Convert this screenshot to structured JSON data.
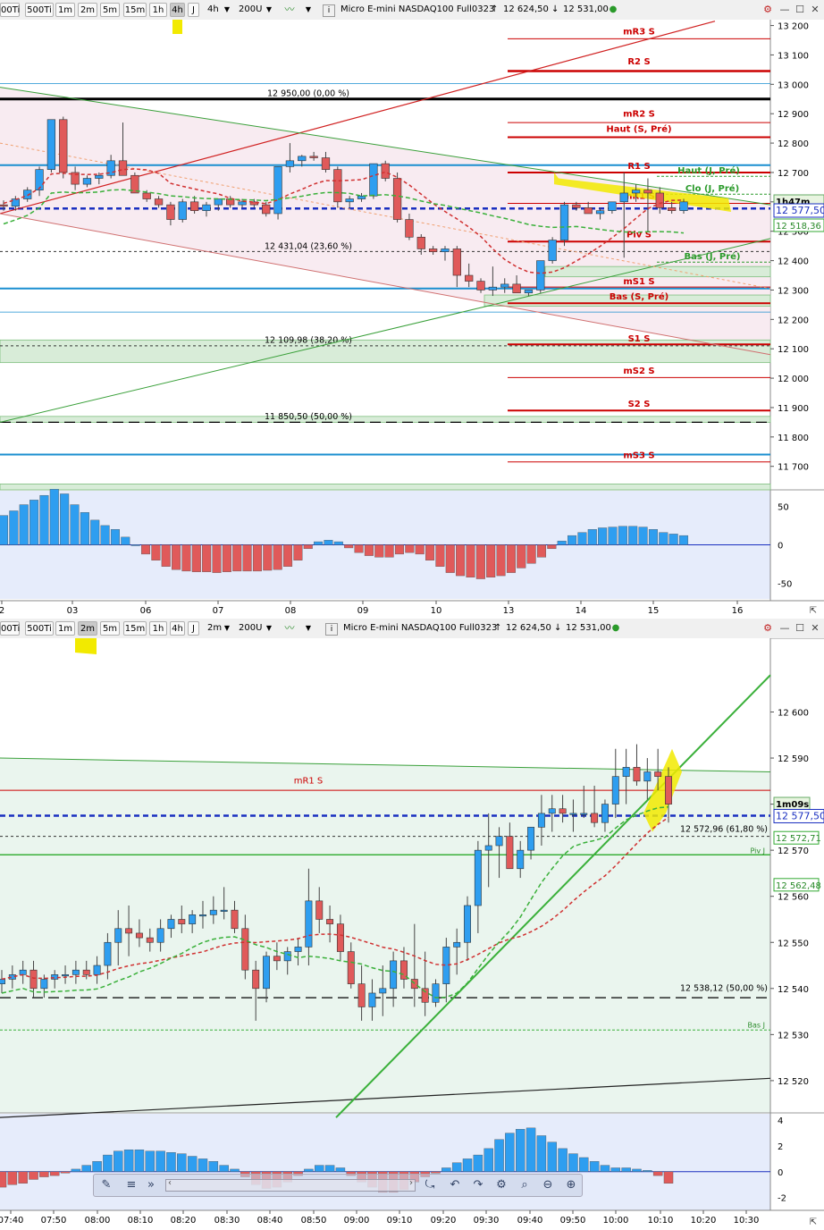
{
  "toolbar_top": {
    "buttons": [
      "00Ti",
      "500Ti",
      "1m",
      "2m",
      "5m",
      "15m",
      "1h",
      "4h",
      "J"
    ],
    "active": "4h",
    "period": "4h",
    "bars": "200U",
    "title": "Micro E-mini NASDAQ100 Full0323",
    "high": "12 624,50",
    "low": "12 531,00"
  },
  "toolbar_bottom": {
    "buttons": [
      "00Ti",
      "500Ti",
      "1m",
      "2m",
      "5m",
      "15m",
      "1h",
      "4h",
      "J"
    ],
    "active": "2m",
    "period": "2m",
    "bars": "200U",
    "title": "Micro E-mini NASDAQ100 Full0323",
    "high": "12 624,50",
    "low": "12 531,00"
  },
  "colors": {
    "up": "#2e9ef0",
    "down": "#e05a5a",
    "pivot_red": "#cc0000",
    "green": "#2a9a2a",
    "blue_dash": "#1a2fc0",
    "highlight": "#f2ea00"
  },
  "chart_data": [
    {
      "type": "candlestick",
      "name": "4h",
      "ylim": [
        11620,
        13220
      ],
      "y_ticks": [
        "13 200",
        "13 100",
        "13 000",
        "12 900",
        "12 800",
        "12 700",
        "12 600",
        "12 500",
        "12 400",
        "12 300",
        "12 200",
        "12 100",
        "12 000",
        "11 900",
        "11 800",
        "11 700"
      ],
      "x_ticks": [
        "2",
        "03",
        "06",
        "07",
        "08",
        "09",
        "10",
        "13",
        "14",
        "15",
        "16"
      ],
      "price_badge": "12 577,50",
      "timer_badge": "1h47m",
      "ma_badge": "12 518,36",
      "fib_labels": [
        "12 950,00 (0,00 %)",
        "12 431,04 (23,60 %)",
        "12 109,98 (38,20 %)",
        "11 850,50 (50,00 %)"
      ],
      "pivot_labels": [
        "mR3 S",
        "R2 S",
        "mR2 S",
        "Haut (S, Pré)",
        "R1 S",
        "Haut (J, Pré)",
        "Clo (J, Pré)",
        "mR1 S",
        "Piv S",
        "Bas (J, Pré)",
        "mS1 S",
        "Bas (S, Pré)",
        "S1 S",
        "mS2 S",
        "S2 S",
        "mS3 S"
      ],
      "candles": [
        [
          12590,
          12605,
          12570,
          12585
        ],
        [
          12585,
          12620,
          12570,
          12610
        ],
        [
          12610,
          12650,
          12600,
          12640
        ],
        [
          12640,
          12720,
          12620,
          12710
        ],
        [
          12710,
          12880,
          12700,
          12880
        ],
        [
          12880,
          12890,
          12680,
          12700
        ],
        [
          12700,
          12720,
          12640,
          12660
        ],
        [
          12660,
          12690,
          12650,
          12680
        ],
        [
          12680,
          12700,
          12660,
          12690
        ],
        [
          12690,
          12760,
          12680,
          12740
        ],
        [
          12740,
          12870,
          12690,
          12690
        ],
        [
          12690,
          12700,
          12630,
          12630
        ],
        [
          12630,
          12640,
          12600,
          12610
        ],
        [
          12610,
          12620,
          12580,
          12590
        ],
        [
          12590,
          12600,
          12520,
          12540
        ],
        [
          12540,
          12610,
          12530,
          12600
        ],
        [
          12600,
          12620,
          12560,
          12570
        ],
        [
          12570,
          12600,
          12550,
          12590
        ],
        [
          12590,
          12610,
          12570,
          12610
        ],
        [
          12610,
          12620,
          12580,
          12590
        ],
        [
          12590,
          12610,
          12580,
          12600
        ],
        [
          12600,
          12610,
          12580,
          12590
        ],
        [
          12590,
          12600,
          12550,
          12560
        ],
        [
          12560,
          12720,
          12540,
          12720
        ],
        [
          12720,
          12800,
          12700,
          12740
        ],
        [
          12740,
          12760,
          12720,
          12755
        ],
        [
          12755,
          12770,
          12740,
          12750
        ],
        [
          12750,
          12770,
          12700,
          12710
        ],
        [
          12710,
          12720,
          12580,
          12600
        ],
        [
          12600,
          12620,
          12580,
          12610
        ],
        [
          12610,
          12630,
          12600,
          12620
        ],
        [
          12620,
          12730,
          12610,
          12730
        ],
        [
          12730,
          12740,
          12670,
          12680
        ],
        [
          12680,
          12700,
          12530,
          12540
        ],
        [
          12540,
          12560,
          12470,
          12480
        ],
        [
          12480,
          12490,
          12420,
          12440
        ],
        [
          12440,
          12450,
          12420,
          12430
        ],
        [
          12430,
          12450,
          12400,
          12440
        ],
        [
          12440,
          12450,
          12310,
          12350
        ],
        [
          12350,
          12390,
          12310,
          12330
        ],
        [
          12330,
          12340,
          12290,
          12300
        ],
        [
          12300,
          12380,
          12280,
          12310
        ],
        [
          12310,
          12340,
          12290,
          12320
        ],
        [
          12320,
          12350,
          12290,
          12290
        ],
        [
          12290,
          12300,
          12280,
          12300
        ],
        [
          12300,
          12400,
          12290,
          12400
        ],
        [
          12400,
          12480,
          12390,
          12470
        ],
        [
          12470,
          12600,
          12450,
          12590
        ],
        [
          12590,
          12600,
          12570,
          12580
        ],
        [
          12580,
          12600,
          12560,
          12560
        ],
        [
          12560,
          12580,
          12540,
          12570
        ],
        [
          12570,
          12600,
          12560,
          12600
        ],
        [
          12600,
          12700,
          12410,
          12630
        ],
        [
          12630,
          12660,
          12600,
          12640
        ],
        [
          12640,
          12680,
          12500,
          12630
        ],
        [
          12630,
          12650,
          12560,
          12580
        ],
        [
          12580,
          12600,
          12560,
          12570
        ],
        [
          12570,
          12610,
          12560,
          12600
        ]
      ],
      "osc_ylim": [
        -70,
        70
      ],
      "osc_ticks": [
        "50",
        "0",
        "-50"
      ],
      "osc_values": [
        38,
        44,
        52,
        58,
        64,
        72,
        66,
        52,
        42,
        32,
        25,
        20,
        10,
        0,
        -12,
        -20,
        -28,
        -32,
        -34,
        -35,
        -35,
        -36,
        -35,
        -34,
        -34,
        -34,
        -33,
        -32,
        -28,
        -20,
        -5,
        4,
        6,
        4,
        -4,
        -10,
        -14,
        -16,
        -16,
        -12,
        -10,
        -12,
        -20,
        -28,
        -36,
        -40,
        -42,
        -44,
        -42,
        -40,
        -36,
        -30,
        -24,
        -16,
        -5,
        5,
        12,
        16,
        20,
        22,
        23,
        24,
        24,
        23,
        20,
        16,
        14,
        12
      ]
    },
    {
      "type": "candlestick",
      "name": "2m",
      "ylim": [
        12513,
        12616
      ],
      "y_ticks": [
        "12 600",
        "12 590",
        "12 580",
        "12 570",
        "12 560",
        "12 550",
        "12 540",
        "12 530",
        "12 520"
      ],
      "x_ticks": [
        "07:40",
        "07:50",
        "08:00",
        "08:10",
        "08:20",
        "08:30",
        "08:40",
        "08:50",
        "09:00",
        "09:10",
        "09:20",
        "09:30",
        "09:40",
        "09:50",
        "10:00",
        "10:10",
        "10:20",
        "10:30"
      ],
      "price_badge": "12 577,50",
      "timer_badge": "1m09s",
      "extra_badges": [
        "12 572,71",
        "12 562,48"
      ],
      "fib_labels": [
        "12 572,96 (61,80 %)",
        "12 538,12 (50,00 %)"
      ],
      "pivot_labels": [
        "mR1 S",
        "Piv J",
        "Bas J"
      ],
      "candles": [
        [
          12541,
          12544,
          12539,
          12542
        ],
        [
          12542,
          12545,
          12540,
          12543
        ],
        [
          12543,
          12546,
          12541,
          12544
        ],
        [
          12544,
          12546,
          12538,
          12540
        ],
        [
          12540,
          12543,
          12538,
          12542
        ],
        [
          12542,
          12544,
          12540,
          12543
        ],
        [
          12543,
          12545,
          12541,
          12543
        ],
        [
          12543,
          12546,
          12541,
          12544
        ],
        [
          12544,
          12546,
          12542,
          12543
        ],
        [
          12543,
          12547,
          12541,
          12545
        ],
        [
          12545,
          12552,
          12542,
          12550
        ],
        [
          12550,
          12557,
          12545,
          12553
        ],
        [
          12553,
          12558,
          12547,
          12552
        ],
        [
          12552,
          12555,
          12549,
          12551
        ],
        [
          12551,
          12553,
          12548,
          12550
        ],
        [
          12550,
          12555,
          12548,
          12553
        ],
        [
          12553,
          12556,
          12551,
          12555
        ],
        [
          12555,
          12558,
          12552,
          12554
        ],
        [
          12554,
          12557,
          12552,
          12556
        ],
        [
          12556,
          12559,
          12553,
          12556
        ],
        [
          12556,
          12560,
          12554,
          12557
        ],
        [
          12557,
          12562,
          12555,
          12557
        ],
        [
          12557,
          12559,
          12552,
          12553
        ],
        [
          12553,
          12556,
          12542,
          12544
        ],
        [
          12544,
          12546,
          12533,
          12540
        ],
        [
          12540,
          12548,
          12537,
          12547
        ],
        [
          12547,
          12550,
          12544,
          12546
        ],
        [
          12546,
          12549,
          12543,
          12548
        ],
        [
          12548,
          12551,
          12545,
          12549
        ],
        [
          12549,
          12566,
          12545,
          12559
        ],
        [
          12559,
          12562,
          12552,
          12555
        ],
        [
          12555,
          12558,
          12550,
          12554
        ],
        [
          12554,
          12556,
          12546,
          12548
        ],
        [
          12548,
          12550,
          12540,
          12541
        ],
        [
          12541,
          12545,
          12533,
          12536
        ],
        [
          12536,
          12542,
          12533,
          12539
        ],
        [
          12539,
          12545,
          12534,
          12540
        ],
        [
          12540,
          12548,
          12536,
          12546
        ],
        [
          12546,
          12549,
          12540,
          12542
        ],
        [
          12542,
          12554,
          12536,
          12540
        ],
        [
          12540,
          12548,
          12534,
          12537
        ],
        [
          12537,
          12542,
          12536,
          12541
        ],
        [
          12541,
          12551,
          12537,
          12549
        ],
        [
          12549,
          12553,
          12543,
          12550
        ],
        [
          12550,
          12560,
          12546,
          12558
        ],
        [
          12558,
          12572,
          12552,
          12570
        ],
        [
          12570,
          12578,
          12562,
          12571
        ],
        [
          12571,
          12575,
          12564,
          12573
        ],
        [
          12573,
          12576,
          12566,
          12566
        ],
        [
          12566,
          12572,
          12564,
          12570
        ],
        [
          12570,
          12575,
          12568,
          12575
        ],
        [
          12575,
          12582,
          12571,
          12578
        ],
        [
          12578,
          12582,
          12574,
          12579
        ],
        [
          12579,
          12582,
          12576,
          12578
        ],
        [
          12578,
          12581,
          12574,
          12578
        ],
        [
          12578,
          12584,
          12577,
          12578
        ],
        [
          12578,
          12584,
          12575,
          12576
        ],
        [
          12576,
          12581,
          12574,
          12580
        ],
        [
          12580,
          12592,
          12577,
          12586
        ],
        [
          12586,
          12592,
          12580,
          12588
        ],
        [
          12588,
          12593,
          12584,
          12585
        ],
        [
          12585,
          12590,
          12581,
          12587
        ],
        [
          12587,
          12592,
          12583,
          12586
        ],
        [
          12586,
          12588,
          12576,
          12580
        ]
      ],
      "osc_ylim": [
        -3,
        4.5
      ],
      "osc_ticks": [
        "4",
        "2",
        "0",
        "-2"
      ],
      "osc_values": [
        -1.2,
        -1.0,
        -0.9,
        -0.6,
        -0.4,
        -0.3,
        -0.1,
        0.2,
        0.5,
        0.8,
        1.3,
        1.6,
        1.7,
        1.7,
        1.6,
        1.6,
        1.5,
        1.4,
        1.2,
        1.0,
        0.8,
        0.5,
        0.2,
        -0.4,
        -1.0,
        -1.3,
        -1.2,
        -0.8,
        -0.3,
        0.2,
        0.5,
        0.5,
        0.3,
        -0.3,
        -0.8,
        -1.2,
        -1.6,
        -1.6,
        -1.4,
        -0.8,
        -0.4,
        -0.1,
        0.3,
        0.7,
        1.0,
        1.3,
        1.8,
        2.5,
        3.0,
        3.3,
        3.4,
        2.8,
        2.3,
        1.8,
        1.4,
        1.1,
        0.8,
        0.5,
        0.3,
        0.3,
        0.2,
        0.1,
        -0.3,
        -0.9
      ]
    }
  ]
}
